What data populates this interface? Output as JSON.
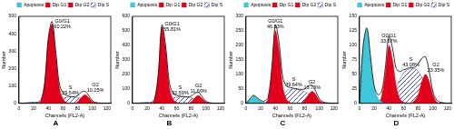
{
  "chart_data": [
    {
      "type": "line",
      "title": "A",
      "x_label": "Channels (FL2-A)",
      "y_label": "Number",
      "x": [
        0,
        5,
        10,
        15,
        20,
        25,
        30,
        35,
        40,
        45,
        50,
        55,
        60,
        65,
        70,
        75,
        80,
        85,
        90,
        95,
        100,
        105,
        110,
        115,
        120,
        125
      ],
      "xlim": [
        0,
        125
      ],
      "xticks": [
        0,
        20,
        40,
        60,
        80,
        100,
        120
      ],
      "ylim": [
        0,
        500
      ],
      "yticks": [
        0,
        100,
        200,
        300,
        400,
        500
      ],
      "grid": false,
      "legend": "top-right",
      "series": [
        {
          "color": "#000000",
          "values": [
            0,
            0,
            3,
            4,
            5,
            6,
            20,
            120,
            380,
            470,
            300,
            110,
            60,
            45,
            40,
            38,
            45,
            65,
            70,
            45,
            15,
            5,
            2,
            1,
            0,
            0
          ]
        },
        {
          "name": "Apoptosis",
          "color": "#3cc8d8",
          "line_style": "solid",
          "values": [
            0,
            0,
            2,
            3,
            4,
            3,
            0,
            0,
            0,
            0,
            0,
            0,
            0,
            0,
            0,
            0,
            0,
            0,
            0,
            0,
            0,
            0,
            0,
            0,
            0,
            0
          ]
        },
        {
          "name": "Dip G1",
          "color": "#e3001b",
          "line_style": "solid",
          "values": [
            0,
            0,
            0,
            0,
            0,
            0,
            15,
            115,
            370,
            455,
            285,
            90,
            25,
            5,
            0,
            0,
            0,
            0,
            0,
            0,
            0,
            0,
            0,
            0,
            0,
            0
          ]
        },
        {
          "name": "Dip G2",
          "color": "#e3001b",
          "line_style": "solid",
          "values": [
            0,
            0,
            0,
            0,
            0,
            0,
            0,
            0,
            0,
            0,
            0,
            0,
            0,
            0,
            0,
            0,
            10,
            35,
            50,
            33,
            10,
            2,
            0,
            0,
            0,
            0
          ]
        },
        {
          "name": "Dip S",
          "color": "#1f2d8c",
          "line_style": "hatched",
          "values": [
            0,
            0,
            0,
            0,
            0,
            0,
            0,
            0,
            5,
            10,
            15,
            20,
            30,
            35,
            38,
            36,
            33,
            28,
            20,
            12,
            5,
            0,
            0,
            0,
            0,
            0
          ]
        }
      ],
      "annotations": [
        {
          "text": "G0/G1",
          "value": 60.22,
          "label": "60.22%",
          "series": "Dip G1"
        },
        {
          "text": "S",
          "value": 29.54,
          "label": "29.54%",
          "series": "Dip S"
        },
        {
          "text": "G2",
          "value": 10.25,
          "label": "10.25%",
          "series": "Dip G2"
        }
      ]
    },
    {
      "type": "line",
      "title": "B",
      "x_label": "Channels (FL2-A)",
      "y_label": "Number",
      "x": [
        0,
        5,
        10,
        15,
        20,
        25,
        30,
        35,
        40,
        45,
        50,
        55,
        60,
        65,
        70,
        75,
        80,
        85,
        90,
        95,
        100,
        105,
        110,
        115,
        120,
        125
      ],
      "xlim": [
        0,
        125
      ],
      "xticks": [
        0,
        20,
        40,
        60,
        80,
        100,
        120
      ],
      "ylim": [
        0,
        600
      ],
      "yticks": [
        0,
        100,
        200,
        300,
        400,
        500,
        600
      ],
      "grid": false,
      "legend": "top-right",
      "series": [
        {
          "color": "#000000",
          "values": [
            0,
            0,
            3,
            4,
            5,
            6,
            30,
            200,
            540,
            400,
            150,
            70,
            55,
            50,
            48,
            45,
            50,
            70,
            75,
            45,
            15,
            5,
            2,
            1,
            0,
            0
          ]
        },
        {
          "name": "Apoptosis",
          "color": "#3cc8d8",
          "line_style": "solid",
          "values": [
            0,
            0,
            2,
            3,
            4,
            3,
            0,
            0,
            0,
            0,
            0,
            0,
            0,
            0,
            0,
            0,
            0,
            0,
            0,
            0,
            0,
            0,
            0,
            0,
            0,
            0
          ]
        },
        {
          "name": "Dip G1",
          "color": "#e3001b",
          "line_style": "solid",
          "values": [
            0,
            0,
            0,
            0,
            0,
            0,
            25,
            195,
            525,
            380,
            120,
            30,
            8,
            0,
            0,
            0,
            0,
            0,
            0,
            0,
            0,
            0,
            0,
            0,
            0,
            0
          ]
        },
        {
          "name": "Dip G2",
          "color": "#e3001b",
          "line_style": "solid",
          "values": [
            0,
            0,
            0,
            0,
            0,
            0,
            0,
            0,
            0,
            0,
            0,
            0,
            0,
            0,
            0,
            0,
            12,
            40,
            55,
            33,
            10,
            2,
            0,
            0,
            0,
            0
          ]
        },
        {
          "name": "Dip S",
          "color": "#1f2d8c",
          "line_style": "hatched",
          "values": [
            0,
            0,
            0,
            0,
            0,
            0,
            0,
            0,
            8,
            15,
            25,
            35,
            42,
            45,
            45,
            42,
            38,
            30,
            22,
            12,
            5,
            0,
            0,
            0,
            0,
            0
          ]
        }
      ],
      "annotations": [
        {
          "text": "G0/G1",
          "value": 55.81,
          "label": "55.81%",
          "series": "Dip G1"
        },
        {
          "text": "S",
          "value": 32.59,
          "label": "32.59%",
          "series": "Dip S"
        },
        {
          "text": "G2",
          "value": 11.6,
          "label": "11.60%",
          "series": "Dip G2"
        }
      ]
    },
    {
      "type": "line",
      "title": "C",
      "x_label": "Channels (FL2-A)",
      "y_label": "Number",
      "x": [
        0,
        5,
        10,
        15,
        20,
        25,
        30,
        35,
        40,
        45,
        50,
        55,
        60,
        65,
        70,
        75,
        80,
        85,
        90,
        95,
        100,
        105,
        110,
        115,
        120,
        125
      ],
      "xlim": [
        0,
        125
      ],
      "xticks": [
        0,
        20,
        40,
        60,
        80,
        100,
        120
      ],
      "ylim": [
        0,
        300
      ],
      "yticks": [
        0,
        50,
        100,
        150,
        200,
        250,
        300
      ],
      "grid": false,
      "legend": "top-right",
      "series": [
        {
          "color": "#000000",
          "values": [
            0,
            15,
            28,
            20,
            10,
            8,
            20,
            120,
            270,
            210,
            90,
            60,
            55,
            52,
            50,
            48,
            50,
            60,
            62,
            42,
            15,
            5,
            2,
            1,
            0,
            0
          ]
        },
        {
          "name": "Apoptosis",
          "color": "#3cc8d8",
          "line_style": "solid",
          "values": [
            0,
            14,
            26,
            18,
            8,
            4,
            0,
            0,
            0,
            0,
            0,
            0,
            0,
            0,
            0,
            0,
            0,
            0,
            0,
            0,
            0,
            0,
            0,
            0,
            0,
            0
          ]
        },
        {
          "name": "Dip G1",
          "color": "#e3001b",
          "line_style": "solid",
          "values": [
            0,
            0,
            0,
            0,
            0,
            0,
            15,
            110,
            250,
            185,
            60,
            15,
            3,
            0,
            0,
            0,
            0,
            0,
            0,
            0,
            0,
            0,
            0,
            0,
            0,
            0
          ]
        },
        {
          "name": "Dip G2",
          "color": "#e3001b",
          "line_style": "solid",
          "values": [
            0,
            0,
            0,
            0,
            0,
            0,
            0,
            0,
            0,
            0,
            0,
            0,
            0,
            0,
            0,
            0,
            12,
            30,
            42,
            30,
            10,
            2,
            0,
            0,
            0,
            0
          ]
        },
        {
          "name": "Dip S",
          "color": "#1f2d8c",
          "line_style": "hatched",
          "values": [
            0,
            0,
            0,
            0,
            0,
            0,
            0,
            0,
            10,
            20,
            30,
            42,
            48,
            50,
            48,
            45,
            40,
            32,
            22,
            12,
            5,
            0,
            0,
            0,
            0,
            0
          ]
        }
      ],
      "annotations": [
        {
          "text": "G0/G1",
          "value": 46.63,
          "label": "46.63%",
          "series": "Dip G1"
        },
        {
          "text": "S",
          "value": 39.64,
          "label": "39.64%",
          "series": "Dip S"
        },
        {
          "text": "G2",
          "value": 13.73,
          "label": "13.73%",
          "series": "Dip G2"
        }
      ]
    },
    {
      "type": "line",
      "title": "D",
      "x_label": "Channels (FL2-A)",
      "y_label": "Number",
      "x": [
        0,
        5,
        10,
        15,
        20,
        25,
        30,
        35,
        40,
        45,
        50,
        55,
        60,
        65,
        70,
        75,
        80,
        85,
        90,
        95,
        100,
        105,
        110,
        115,
        120,
        125
      ],
      "xlim": [
        0,
        125
      ],
      "xticks": [
        0,
        20,
        40,
        60,
        80,
        100,
        120
      ],
      "ylim": [
        0,
        150
      ],
      "yticks": [
        0,
        25,
        50,
        75,
        100,
        125,
        150
      ],
      "grid": false,
      "legend": "top-right",
      "series": [
        {
          "color": "#000000",
          "values": [
            0,
            100,
            130,
            80,
            30,
            15,
            20,
            60,
            115,
            95,
            60,
            55,
            58,
            60,
            62,
            62,
            68,
            78,
            80,
            55,
            20,
            6,
            2,
            1,
            0,
            0
          ]
        },
        {
          "name": "Apoptosis",
          "color": "#3cc8d8",
          "line_style": "solid",
          "values": [
            0,
            98,
            128,
            78,
            28,
            10,
            3,
            0,
            0,
            0,
            0,
            0,
            0,
            0,
            0,
            0,
            0,
            0,
            0,
            0,
            0,
            0,
            0,
            0,
            0,
            0
          ]
        },
        {
          "name": "Dip G1",
          "color": "#e3001b",
          "line_style": "solid",
          "values": [
            0,
            0,
            0,
            0,
            0,
            0,
            12,
            50,
            100,
            75,
            30,
            8,
            2,
            0,
            0,
            0,
            0,
            0,
            0,
            0,
            0,
            0,
            0,
            0,
            0,
            0
          ]
        },
        {
          "name": "Dip G2",
          "color": "#e3001b",
          "line_style": "solid",
          "values": [
            0,
            0,
            0,
            0,
            0,
            0,
            0,
            0,
            0,
            0,
            0,
            0,
            0,
            0,
            0,
            5,
            15,
            38,
            50,
            38,
            15,
            3,
            0,
            0,
            0,
            0
          ]
        },
        {
          "name": "Dip S",
          "color": "#1f2d8c",
          "line_style": "hatched",
          "values": [
            0,
            0,
            0,
            0,
            0,
            0,
            0,
            0,
            10,
            18,
            28,
            42,
            52,
            58,
            60,
            60,
            55,
            45,
            32,
            18,
            6,
            0,
            0,
            0,
            0,
            0
          ]
        }
      ],
      "annotations": [
        {
          "text": "G0/G1",
          "value": 33.57,
          "label": "33.57%",
          "series": "Dip G1"
        },
        {
          "text": "S",
          "value": 43.08,
          "label": "43.08%",
          "series": "Dip S"
        },
        {
          "text": "G2",
          "value": 23.35,
          "label": "23.35%",
          "series": "Dip G2"
        }
      ]
    }
  ]
}
